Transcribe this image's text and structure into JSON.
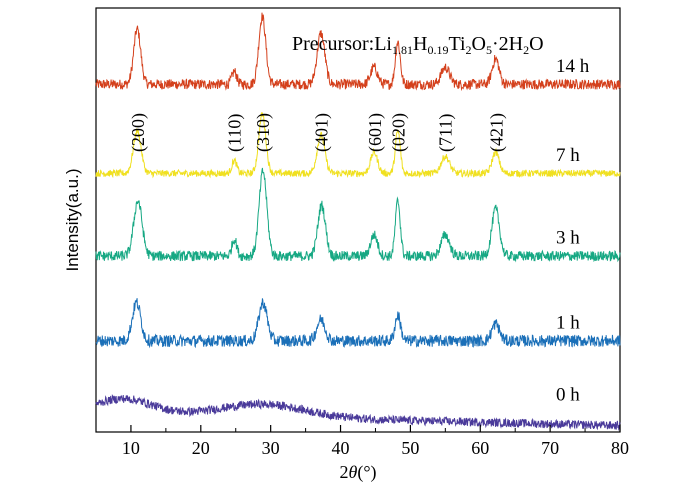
{
  "chart_data": {
    "type": "line",
    "title": "",
    "annotation": {
      "text": "Precursor:Li1.81H0.19Ti2O5·2H2O",
      "parts": [
        {
          "t": "Precursor:Li",
          "sub": false
        },
        {
          "t": "1.81",
          "sub": true
        },
        {
          "t": "H",
          "sub": false
        },
        {
          "t": "0.19",
          "sub": true
        },
        {
          "t": "Ti",
          "sub": false
        },
        {
          "t": "2",
          "sub": true
        },
        {
          "t": "O",
          "sub": false
        },
        {
          "t": "5",
          "sub": true
        },
        {
          "t": "·2H",
          "sub": false
        },
        {
          "t": "2",
          "sub": true
        },
        {
          "t": "O",
          "sub": false
        }
      ]
    },
    "xlabel_parts": [
      {
        "t": "2",
        "italic": false
      },
      {
        "t": "θ",
        "italic": true
      },
      {
        "t": "(°)",
        "italic": false
      }
    ],
    "ylabel": "Intensity(a.u.)",
    "xlim": [
      5,
      80
    ],
    "ylim": [
      0,
      10
    ],
    "xticks": [
      10,
      20,
      30,
      40,
      50,
      60,
      70,
      80
    ],
    "grid": false,
    "legend": "none",
    "series": [
      {
        "name": "14 h",
        "color": "#d4401c",
        "baseline": 8.2,
        "scale": 1.2,
        "noise": 0.12,
        "peaks": [
          [
            10.9,
            1.3,
            0.5
          ],
          [
            24.8,
            0.3,
            0.35
          ],
          [
            28.8,
            1.6,
            0.5
          ],
          [
            37.2,
            1.2,
            0.55
          ],
          [
            44.8,
            0.4,
            0.5
          ],
          [
            48.2,
            1.0,
            0.35
          ],
          [
            55.0,
            0.4,
            0.6
          ],
          [
            62.2,
            0.6,
            0.5
          ]
        ]
      },
      {
        "name": "7 h",
        "color": "#f0e020",
        "baseline": 6.1,
        "scale": 1.1,
        "noise": 0.08,
        "peaks": [
          [
            10.9,
            1.0,
            0.55
          ],
          [
            24.8,
            0.3,
            0.35
          ],
          [
            28.8,
            1.4,
            0.5
          ],
          [
            37.2,
            0.9,
            0.55
          ],
          [
            44.8,
            0.5,
            0.5
          ],
          [
            48.2,
            1.0,
            0.35
          ],
          [
            55.0,
            0.4,
            0.6
          ],
          [
            62.2,
            0.5,
            0.5
          ]
        ]
      },
      {
        "name": "3 h",
        "color": "#16a883",
        "baseline": 4.15,
        "scale": 1.25,
        "noise": 0.12,
        "peaks": [
          [
            11.0,
            1.3,
            0.6
          ],
          [
            24.8,
            0.4,
            0.35
          ],
          [
            28.9,
            2.0,
            0.55
          ],
          [
            37.3,
            1.2,
            0.55
          ],
          [
            44.8,
            0.5,
            0.5
          ],
          [
            48.2,
            1.3,
            0.35
          ],
          [
            55.0,
            0.5,
            0.6
          ],
          [
            62.2,
            1.1,
            0.55
          ]
        ]
      },
      {
        "name": "1 h",
        "color": "#1a6fb8",
        "baseline": 2.15,
        "scale": 1.05,
        "noise": 0.14,
        "peaks": [
          [
            10.8,
            0.9,
            0.6
          ],
          [
            28.9,
            0.9,
            0.6
          ],
          [
            37.2,
            0.5,
            0.6
          ],
          [
            48.2,
            0.6,
            0.4
          ],
          [
            62.2,
            0.4,
            0.55
          ]
        ]
      },
      {
        "name": "0 h",
        "color": "#4a3a9a",
        "baseline": 0.45,
        "scale": 1.0,
        "noise": 0.1,
        "peaks": [
          [
            9.0,
            0.35,
            4.0
          ],
          [
            29.0,
            0.3,
            6.0
          ]
        ]
      }
    ],
    "peak_labels": [
      {
        "text": "(200)",
        "x": 11.0
      },
      {
        "text": "(110)",
        "x": 24.8
      },
      {
        "text": "(310)",
        "x": 28.9
      },
      {
        "text": "(401)",
        "x": 37.3
      },
      {
        "text": "(601)",
        "x": 44.9
      },
      {
        "text": "(020)",
        "x": 48.3
      },
      {
        "text": "(711)",
        "x": 55.0
      },
      {
        "text": "(421)",
        "x": 62.3
      }
    ]
  }
}
